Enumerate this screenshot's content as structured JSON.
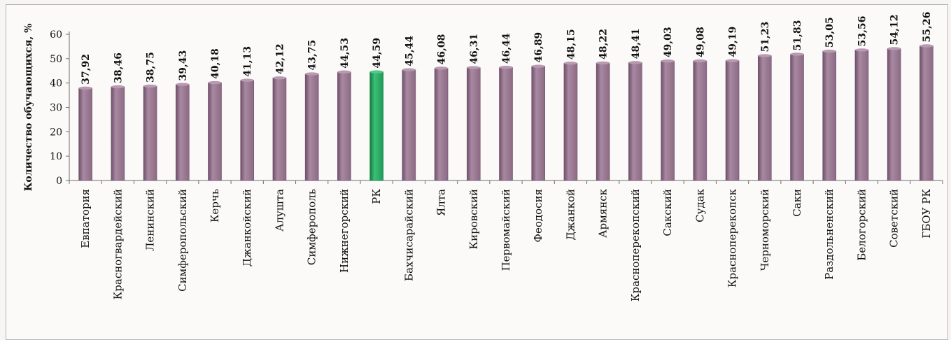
{
  "chart_data": {
    "type": "bar",
    "ylabel": "Количество обучающихся, %",
    "ylim": [
      0,
      60
    ],
    "yticks": [
      0,
      10,
      20,
      30,
      40,
      50,
      60
    ],
    "categories": [
      "Евпатория",
      "Красногвардейский",
      "Ленинский",
      "Симферопольский",
      "Керчь",
      "Джанкойский",
      "Алушта",
      "Симферополь",
      "Нижнегорский",
      "РК",
      "Бахчисарайский",
      "Ялта",
      "Кировский",
      "Первомайский",
      "Феодосия",
      "Джанкой",
      "Армянск",
      "Красноперекопский",
      "Сакский",
      "Судак",
      "Красноперекопск",
      "Черноморский",
      "Саки",
      "Раздольненский",
      "Белогорский",
      "Советский",
      "ГБОУ РК"
    ],
    "values": [
      37.92,
      38.46,
      38.75,
      39.43,
      40.18,
      41.13,
      42.12,
      43.75,
      44.53,
      44.59,
      45.44,
      46.08,
      46.31,
      46.44,
      46.89,
      48.15,
      48.22,
      48.41,
      49.03,
      49.08,
      49.19,
      51.23,
      51.83,
      53.05,
      53.56,
      54.12,
      55.26
    ],
    "value_labels": [
      "37,92",
      "38,46",
      "38,75",
      "39,43",
      "40,18",
      "41,13",
      "42,12",
      "43,75",
      "44,53",
      "44,59",
      "45,44",
      "46,08",
      "46,31",
      "46,44",
      "46,89",
      "48,15",
      "48,22",
      "48,41",
      "49,03",
      "49,08",
      "49,19",
      "51,23",
      "51,83",
      "53,05",
      "53,56",
      "54,12",
      "55,26"
    ],
    "highlight_index": 9,
    "colors": {
      "bar": "#8b6a84",
      "highlight": "#1e9a55",
      "axis": "#6d6d6d"
    },
    "grid": false,
    "legend": "none"
  }
}
